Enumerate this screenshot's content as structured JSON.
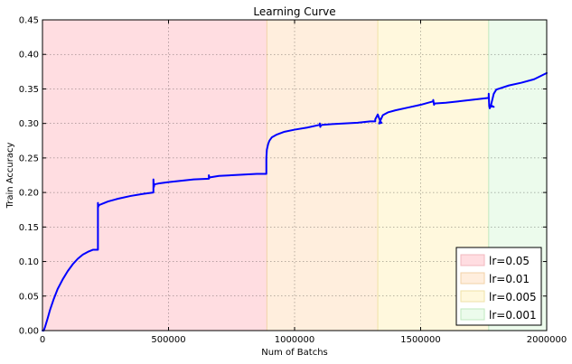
{
  "chart_data": {
    "type": "line",
    "title": "Learning Curve",
    "xlabel": "Num of Batchs",
    "ylabel": "Train Accuracy",
    "xlim": [
      0,
      2000000
    ],
    "ylim": [
      0.0,
      0.45
    ],
    "x_ticks": [
      0,
      500000,
      1000000,
      1500000,
      2000000
    ],
    "x_tick_labels": [
      "0",
      "500000",
      "1000000",
      "1500000",
      "2000000"
    ],
    "y_ticks": [
      0.0,
      0.05,
      0.1,
      0.15,
      0.2,
      0.25,
      0.3,
      0.35,
      0.4,
      0.45
    ],
    "y_tick_labels": [
      "0.00",
      "0.05",
      "0.10",
      "0.15",
      "0.20",
      "0.25",
      "0.30",
      "0.35",
      "0.40",
      "0.45"
    ],
    "grid": true,
    "legend_position": "lower-right",
    "regions": [
      {
        "label": "lr=0.05",
        "x_start": 0,
        "x_end": 890000,
        "color": "#ffdde1",
        "edge": "#f2b8bf"
      },
      {
        "label": "lr=0.01",
        "x_start": 890000,
        "x_end": 1330000,
        "color": "#ffeedd",
        "edge": "#f2d2a8"
      },
      {
        "label": "lr=0.005",
        "x_start": 1330000,
        "x_end": 1770000,
        "color": "#fff8dd",
        "edge": "#efe2a8"
      },
      {
        "label": "lr=0.001",
        "x_start": 1770000,
        "x_end": 2000000,
        "color": "#ecfbec",
        "edge": "#bfe8bf"
      }
    ],
    "series": [
      {
        "color": "#0000ff",
        "x": [
          0,
          5000,
          10000,
          20000,
          30000,
          45000,
          60000,
          80000,
          100000,
          120000,
          140000,
          160000,
          180000,
          200000,
          210000,
          220000,
          220000,
          221000,
          223000,
          226000,
          240000,
          260000,
          300000,
          350000,
          400000,
          440000,
          440000,
          442000,
          444000,
          447000,
          460000,
          500000,
          550000,
          600000,
          660000,
          660000,
          662000,
          664000,
          667000,
          700000,
          750000,
          800000,
          850000,
          888000,
          888000,
          890000,
          895000,
          900000,
          910000,
          930000,
          960000,
          1000000,
          1050000,
          1100000,
          1100000,
          1102000,
          1104000,
          1110000,
          1150000,
          1200000,
          1250000,
          1300000,
          1320000,
          1320000,
          1330000,
          1340000,
          1345000,
          1335000,
          1350000,
          1370000,
          1400000,
          1450000,
          1500000,
          1550000,
          1550000,
          1553000,
          1556000,
          1560000,
          1600000,
          1650000,
          1700000,
          1770000,
          1770000,
          1772000,
          1774000,
          1780000,
          1790000,
          1778000,
          1790000,
          1800000,
          1850000,
          1900000,
          1950000,
          2000000
        ],
        "y": [
          0.0,
          0.0,
          0.005,
          0.017,
          0.03,
          0.046,
          0.06,
          0.074,
          0.086,
          0.096,
          0.104,
          0.11,
          0.114,
          0.117,
          0.117,
          0.117,
          0.185,
          0.179,
          0.181,
          0.182,
          0.184,
          0.187,
          0.191,
          0.195,
          0.198,
          0.2,
          0.219,
          0.208,
          0.212,
          0.212,
          0.213,
          0.215,
          0.217,
          0.219,
          0.22,
          0.225,
          0.221,
          0.222,
          0.222,
          0.224,
          0.225,
          0.226,
          0.227,
          0.227,
          0.25,
          0.262,
          0.27,
          0.275,
          0.28,
          0.284,
          0.288,
          0.291,
          0.294,
          0.298,
          0.3,
          0.295,
          0.297,
          0.298,
          0.299,
          0.3,
          0.301,
          0.303,
          0.303,
          0.306,
          0.313,
          0.303,
          0.301,
          0.3,
          0.312,
          0.316,
          0.319,
          0.323,
          0.327,
          0.332,
          0.334,
          0.327,
          0.329,
          0.329,
          0.33,
          0.332,
          0.334,
          0.337,
          0.343,
          0.325,
          0.322,
          0.326,
          0.324,
          0.325,
          0.343,
          0.349,
          0.355,
          0.359,
          0.364,
          0.373
        ]
      }
    ]
  }
}
